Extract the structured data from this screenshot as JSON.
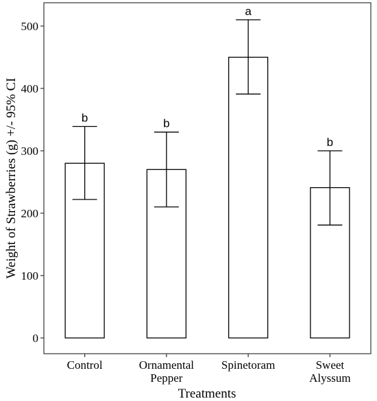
{
  "chart_data": {
    "type": "bar",
    "title": "",
    "xlabel": "Treatments",
    "ylabel": "Weight of Strawberries (g) +/- 95% CI",
    "ylim": [
      -25,
      545
    ],
    "y_ticks": [
      0,
      100,
      200,
      300,
      400,
      500
    ],
    "grid": false,
    "categories": [
      [
        "Control"
      ],
      [
        "Ornamental",
        "Pepper"
      ],
      [
        "Spinetoram"
      ],
      [
        "Sweet",
        "Alyssum"
      ]
    ],
    "values": [
      280,
      270,
      450,
      241
    ],
    "error_low": [
      222,
      210,
      391,
      181
    ],
    "error_high": [
      339,
      330,
      510,
      300
    ],
    "significance_letters": [
      "b",
      "b",
      "a",
      "b"
    ]
  }
}
